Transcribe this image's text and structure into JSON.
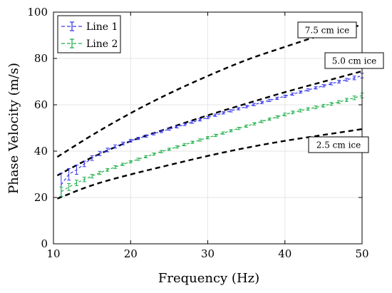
{
  "chart_data": {
    "type": "line",
    "title": "",
    "xlabel": "Frequency (Hz)",
    "ylabel": "Phase Velocity (m/s)",
    "xlim": [
      10,
      50
    ],
    "ylim": [
      0,
      100
    ],
    "xticks": [
      10,
      20,
      30,
      40,
      50
    ],
    "yticks": [
      0,
      20,
      40,
      60,
      80,
      100
    ],
    "grid": true,
    "legend_position": "top-left",
    "series": [
      {
        "name": "Line 1",
        "color": "#3a3af0",
        "style": "dashed-errorbar",
        "x": [
          11,
          12,
          13,
          14,
          15,
          16,
          17,
          18,
          19,
          20,
          21,
          22,
          23,
          24,
          25,
          26,
          27,
          28,
          29,
          30,
          31,
          32,
          33,
          34,
          35,
          36,
          37,
          38,
          39,
          40,
          41,
          42,
          43,
          44,
          45,
          46,
          47,
          48,
          49,
          50
        ],
        "y": [
          25.5,
          30,
          32,
          34.5,
          37,
          39,
          40.5,
          42,
          43.3,
          44.5,
          45.5,
          46.5,
          47.5,
          48.5,
          49.5,
          50.5,
          51.5,
          52.5,
          53.5,
          54.5,
          55.5,
          56.5,
          57.4,
          58.3,
          59.2,
          60.1,
          61,
          61.9,
          62.8,
          63.7,
          64.6,
          65.5,
          66.4,
          67.3,
          68.2,
          69.1,
          70,
          70.8,
          71.6,
          72.6
        ],
        "error": [
          5,
          2.5,
          2,
          1.2,
          1,
          0.9,
          0.8,
          0.7,
          0.6,
          0.6,
          0.5,
          0.5,
          0.5,
          0.5,
          0.5,
          0.5,
          0.5,
          0.5,
          0.5,
          0.5,
          0.5,
          0.5,
          0.5,
          0.5,
          0.5,
          0.5,
          0.5,
          0.5,
          0.5,
          0.5,
          0.5,
          0.5,
          0.5,
          0.5,
          0.5,
          0.5,
          0.6,
          0.6,
          0.8,
          1
        ]
      },
      {
        "name": "Line 2",
        "color": "#22b14c",
        "style": "dashed-errorbar",
        "x": [
          11,
          12,
          13,
          14,
          15,
          16,
          17,
          18,
          19,
          20,
          21,
          22,
          23,
          24,
          25,
          26,
          27,
          28,
          29,
          30,
          31,
          32,
          33,
          34,
          35,
          36,
          37,
          38,
          39,
          40,
          41,
          42,
          43,
          44,
          45,
          46,
          47,
          48,
          49,
          50
        ],
        "y": [
          22.5,
          24.5,
          26.3,
          27.8,
          29.2,
          30.6,
          31.9,
          33.1,
          34.3,
          35.4,
          36.5,
          37.6,
          38.7,
          39.8,
          40.8,
          41.8,
          42.8,
          43.8,
          44.8,
          45.8,
          46.8,
          47.8,
          48.8,
          49.8,
          50.8,
          51.8,
          52.8,
          53.8,
          54.8,
          55.8,
          56.7,
          57.5,
          58.2,
          58.9,
          59.6,
          60.4,
          61.2,
          62.1,
          63,
          64
        ],
        "error": [
          2,
          1.5,
          1.2,
          1,
          0.8,
          0.7,
          0.6,
          0.6,
          0.5,
          0.5,
          0.5,
          0.5,
          0.5,
          0.5,
          0.5,
          0.5,
          0.5,
          0.5,
          0.5,
          0.5,
          0.5,
          0.5,
          0.5,
          0.5,
          0.5,
          0.5,
          0.5,
          0.5,
          0.5,
          0.6,
          0.6,
          0.6,
          0.6,
          0.6,
          0.6,
          0.6,
          0.6,
          0.7,
          0.8,
          1
        ]
      }
    ],
    "model_curves": [
      {
        "label": "7.5 cm ice",
        "color": "#000000",
        "x": [
          10.5,
          15,
          20,
          25,
          30,
          35,
          40,
          45,
          50
        ],
        "y": [
          37.5,
          47,
          56.5,
          65,
          72.5,
          79.5,
          85,
          90.5,
          94.5
        ]
      },
      {
        "label": "5.0 cm ice",
        "color": "#000000",
        "x": [
          10.5,
          15,
          20,
          25,
          30,
          35,
          40,
          45,
          50
        ],
        "y": [
          29.5,
          37.5,
          44.5,
          50,
          55.5,
          60.5,
          65.5,
          70,
          74.5
        ]
      },
      {
        "label": "2.5 cm ice",
        "color": "#000000",
        "x": [
          10.5,
          15,
          20,
          25,
          30,
          35,
          40,
          45,
          50
        ],
        "y": [
          19.5,
          25.5,
          30,
          34,
          38,
          41.5,
          44.5,
          47,
          49.5
        ]
      }
    ]
  }
}
